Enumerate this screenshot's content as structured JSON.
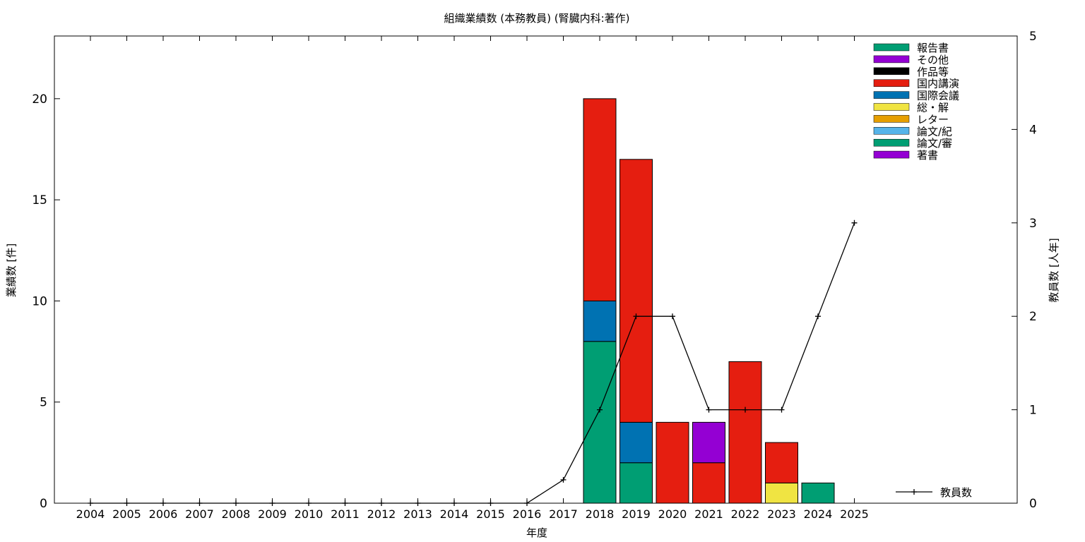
{
  "chart_data": {
    "type": "bar",
    "title": "組織業績数 (本務教員) (腎臓内科:著作)",
    "xlabel": "年度",
    "ylabel": "業績数 [件]",
    "y2label": "教員数 [人年]",
    "ylim": [
      0,
      23.1
    ],
    "y2lim": [
      0,
      5
    ],
    "yticks": [
      0,
      5,
      10,
      15,
      20
    ],
    "y2ticks": [
      0,
      1,
      2,
      3,
      4,
      5
    ],
    "categories": [
      "2004",
      "2005",
      "2006",
      "2007",
      "2008",
      "2009",
      "2010",
      "2011",
      "2012",
      "2013",
      "2014",
      "2015",
      "2016",
      "2017",
      "2018",
      "2019",
      "2020",
      "2021",
      "2022",
      "2023",
      "2024",
      "2025"
    ],
    "stacked": true,
    "legend_position": "top-right",
    "series": [
      {
        "name": "著書",
        "color": "#9400d3",
        "values": [
          0,
          0,
          0,
          0,
          0,
          0,
          0,
          0,
          0,
          0,
          0,
          0,
          0,
          0,
          0,
          0,
          0,
          0,
          0,
          0,
          0,
          0
        ]
      },
      {
        "name": "論文/審",
        "color": "#009e73",
        "values": [
          0,
          0,
          0,
          0,
          0,
          0,
          0,
          0,
          0,
          0,
          0,
          0,
          0,
          0,
          8,
          2,
          0,
          0,
          0,
          0,
          1,
          0
        ]
      },
      {
        "name": "論文/紀",
        "color": "#56b4e9",
        "values": [
          0,
          0,
          0,
          0,
          0,
          0,
          0,
          0,
          0,
          0,
          0,
          0,
          0,
          0,
          0,
          0,
          0,
          0,
          0,
          0,
          0,
          0
        ]
      },
      {
        "name": "レター",
        "color": "#e69f00",
        "values": [
          0,
          0,
          0,
          0,
          0,
          0,
          0,
          0,
          0,
          0,
          0,
          0,
          0,
          0,
          0,
          0,
          0,
          0,
          0,
          0,
          0,
          0
        ]
      },
      {
        "name": "総・解",
        "color": "#f0e442",
        "values": [
          0,
          0,
          0,
          0,
          0,
          0,
          0,
          0,
          0,
          0,
          0,
          0,
          0,
          0,
          0,
          0,
          0,
          0,
          0,
          1,
          0,
          0
        ]
      },
      {
        "name": "国際会議",
        "color": "#0072b2",
        "values": [
          0,
          0,
          0,
          0,
          0,
          0,
          0,
          0,
          0,
          0,
          0,
          0,
          0,
          0,
          2,
          2,
          0,
          0,
          0,
          0,
          0,
          0
        ]
      },
      {
        "name": "国内講演",
        "color": "#e51e10",
        "values": [
          0,
          0,
          0,
          0,
          0,
          0,
          0,
          0,
          0,
          0,
          0,
          0,
          0,
          0,
          10,
          13,
          4,
          2,
          7,
          2,
          0,
          0
        ]
      },
      {
        "name": "作品等",
        "color": "#000000",
        "values": [
          0,
          0,
          0,
          0,
          0,
          0,
          0,
          0,
          0,
          0,
          0,
          0,
          0,
          0,
          0,
          0,
          0,
          0,
          0,
          0,
          0,
          0
        ]
      },
      {
        "name": "その他",
        "color": "#9400d3",
        "values": [
          0,
          0,
          0,
          0,
          0,
          0,
          0,
          0,
          0,
          0,
          0,
          0,
          0,
          0,
          0,
          0,
          0,
          2,
          0,
          0,
          0,
          0
        ]
      },
      {
        "name": "報告書",
        "color": "#009e73",
        "values": [
          0,
          0,
          0,
          0,
          0,
          0,
          0,
          0,
          0,
          0,
          0,
          0,
          0,
          0,
          0,
          0,
          0,
          0,
          0,
          0,
          0,
          0
        ]
      }
    ],
    "line_series": {
      "name": "教員数",
      "axis": "y2",
      "color": "#000000",
      "values": [
        0,
        0,
        0,
        0,
        0,
        0,
        0,
        0,
        0,
        0,
        0,
        0,
        0,
        0.25,
        1,
        2,
        2,
        1,
        1,
        1,
        2,
        3
      ]
    }
  }
}
